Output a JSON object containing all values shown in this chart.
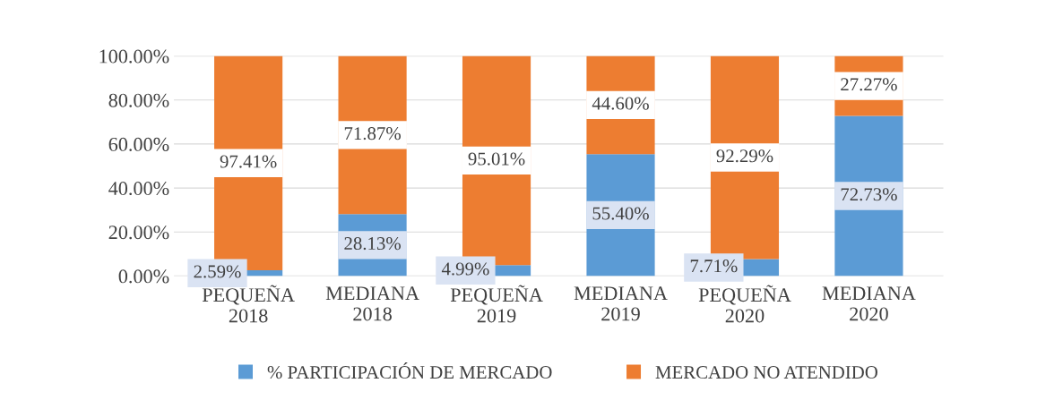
{
  "chart_data": {
    "type": "bar",
    "stacked": true,
    "categories": [
      "PEQUEÑA\n2018",
      "MEDIANA\n2018",
      "PEQUEÑA\n2019",
      "MEDIANA\n2019",
      "PEQUEÑA\n2020",
      "MEDIANA\n2020"
    ],
    "series": [
      {
        "name": "% PARTICIPACIÓN DE MERCADO",
        "color": "#5b9bd5",
        "values": [
          2.59,
          28.13,
          4.99,
          55.4,
          7.71,
          72.73
        ],
        "value_labels": [
          "2.59%",
          "28.13%",
          "4.99%",
          "55.40%",
          "7.71%",
          "72.73%"
        ]
      },
      {
        "name": "MERCADO NO ATENDIDO",
        "color": "#ed7d31",
        "values": [
          97.41,
          71.87,
          95.01,
          44.6,
          92.29,
          27.27
        ],
        "value_labels": [
          "97.41%",
          "71.87%",
          "95.01%",
          "44.60%",
          "92.29%",
          "27.27%"
        ]
      }
    ],
    "ylim": [
      0,
      100
    ],
    "yticks": [
      {
        "value": 0,
        "label": "0.00%"
      },
      {
        "value": 20,
        "label": "20.00%"
      },
      {
        "value": 40,
        "label": "40.00%"
      },
      {
        "value": 60,
        "label": "60.00%"
      },
      {
        "value": 80,
        "label": "80.00%"
      },
      {
        "value": 100,
        "label": "100.00%"
      }
    ],
    "grid": "y",
    "legend": "bottom"
  }
}
